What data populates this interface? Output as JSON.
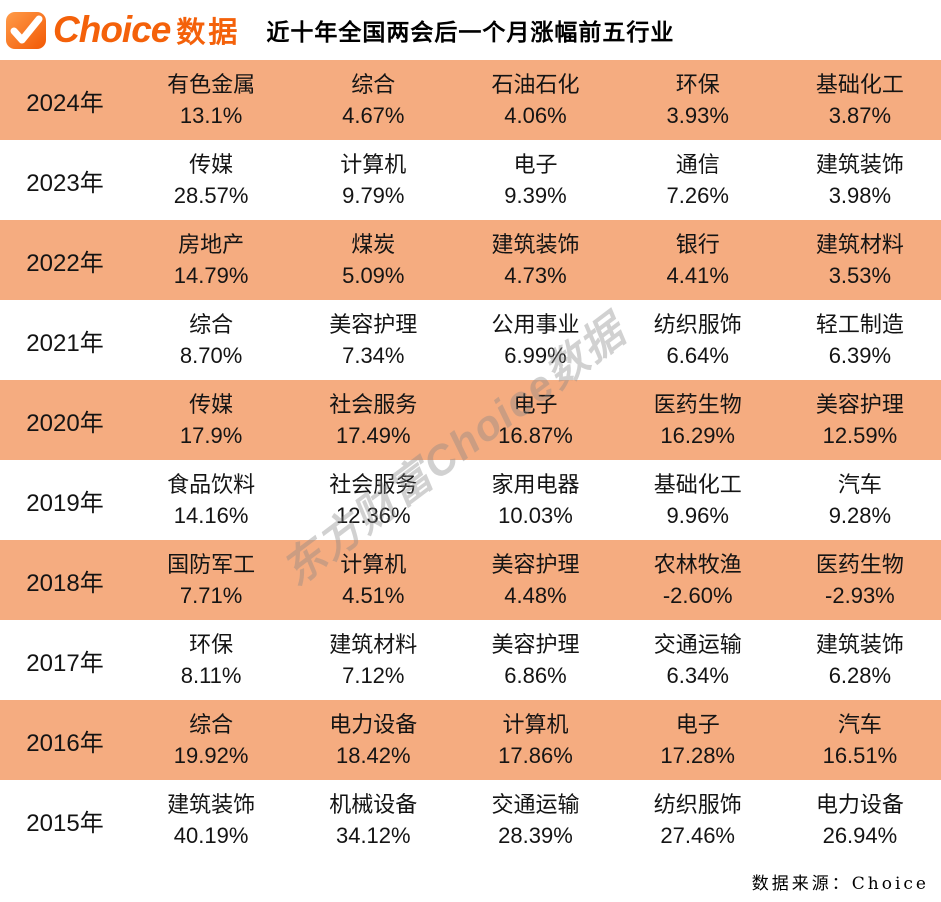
{
  "header": {
    "logo": {
      "icon": "check-icon",
      "brand": "Choice",
      "suffix": "数据"
    },
    "title": "近十年全国两会后一个月涨幅前五行业"
  },
  "watermark": "东方财富Choice数据",
  "footer": {
    "source": "数据来源：Choice"
  },
  "colors": {
    "brand_orange": "#F4610A",
    "row_highlight": "#F5AC80",
    "text": "#141414",
    "watermark_gray": "rgba(135,135,135,0.38)"
  },
  "chart_data": {
    "type": "table",
    "title": "近十年全国两会后一个月涨幅前五行业",
    "rows": [
      {
        "year": "2024年",
        "entries": [
          {
            "industry": "有色金属",
            "change": "13.1%"
          },
          {
            "industry": "综合",
            "change": "4.67%"
          },
          {
            "industry": "石油石化",
            "change": "4.06%"
          },
          {
            "industry": "环保",
            "change": "3.93%"
          },
          {
            "industry": "基础化工",
            "change": "3.87%"
          }
        ]
      },
      {
        "year": "2023年",
        "entries": [
          {
            "industry": "传媒",
            "change": "28.57%"
          },
          {
            "industry": "计算机",
            "change": "9.79%"
          },
          {
            "industry": "电子",
            "change": "9.39%"
          },
          {
            "industry": "通信",
            "change": "7.26%"
          },
          {
            "industry": "建筑装饰",
            "change": "3.98%"
          }
        ]
      },
      {
        "year": "2022年",
        "entries": [
          {
            "industry": "房地产",
            "change": "14.79%"
          },
          {
            "industry": "煤炭",
            "change": "5.09%"
          },
          {
            "industry": "建筑装饰",
            "change": "4.73%"
          },
          {
            "industry": "银行",
            "change": "4.41%"
          },
          {
            "industry": "建筑材料",
            "change": "3.53%"
          }
        ]
      },
      {
        "year": "2021年",
        "entries": [
          {
            "industry": "综合",
            "change": "8.70%"
          },
          {
            "industry": "美容护理",
            "change": "7.34%"
          },
          {
            "industry": "公用事业",
            "change": "6.99%"
          },
          {
            "industry": "纺织服饰",
            "change": "6.64%"
          },
          {
            "industry": "轻工制造",
            "change": "6.39%"
          }
        ]
      },
      {
        "year": "2020年",
        "entries": [
          {
            "industry": "传媒",
            "change": "17.9%"
          },
          {
            "industry": "社会服务",
            "change": "17.49%"
          },
          {
            "industry": "电子",
            "change": "16.87%"
          },
          {
            "industry": "医药生物",
            "change": "16.29%"
          },
          {
            "industry": "美容护理",
            "change": "12.59%"
          }
        ]
      },
      {
        "year": "2019年",
        "entries": [
          {
            "industry": "食品饮料",
            "change": "14.16%"
          },
          {
            "industry": "社会服务",
            "change": "12.36%"
          },
          {
            "industry": "家用电器",
            "change": "10.03%"
          },
          {
            "industry": "基础化工",
            "change": "9.96%"
          },
          {
            "industry": "汽车",
            "change": "9.28%"
          }
        ]
      },
      {
        "year": "2018年",
        "entries": [
          {
            "industry": "国防军工",
            "change": "7.71%"
          },
          {
            "industry": "计算机",
            "change": "4.51%"
          },
          {
            "industry": "美容护理",
            "change": "4.48%"
          },
          {
            "industry": "农林牧渔",
            "change": "-2.60%"
          },
          {
            "industry": "医药生物",
            "change": "-2.93%"
          }
        ]
      },
      {
        "year": "2017年",
        "entries": [
          {
            "industry": "环保",
            "change": "8.11%"
          },
          {
            "industry": "建筑材料",
            "change": "7.12%"
          },
          {
            "industry": "美容护理",
            "change": "6.86%"
          },
          {
            "industry": "交通运输",
            "change": "6.34%"
          },
          {
            "industry": "建筑装饰",
            "change": "6.28%"
          }
        ]
      },
      {
        "year": "2016年",
        "entries": [
          {
            "industry": "综合",
            "change": "19.92%"
          },
          {
            "industry": "电力设备",
            "change": "18.42%"
          },
          {
            "industry": "计算机",
            "change": "17.86%"
          },
          {
            "industry": "电子",
            "change": "17.28%"
          },
          {
            "industry": "汽车",
            "change": "16.51%"
          }
        ]
      },
      {
        "year": "2015年",
        "entries": [
          {
            "industry": "建筑装饰",
            "change": "40.19%"
          },
          {
            "industry": "机械设备",
            "change": "34.12%"
          },
          {
            "industry": "交通运输",
            "change": "28.39%"
          },
          {
            "industry": "纺织服饰",
            "change": "27.46%"
          },
          {
            "industry": "电力设备",
            "change": "26.94%"
          }
        ]
      }
    ]
  }
}
